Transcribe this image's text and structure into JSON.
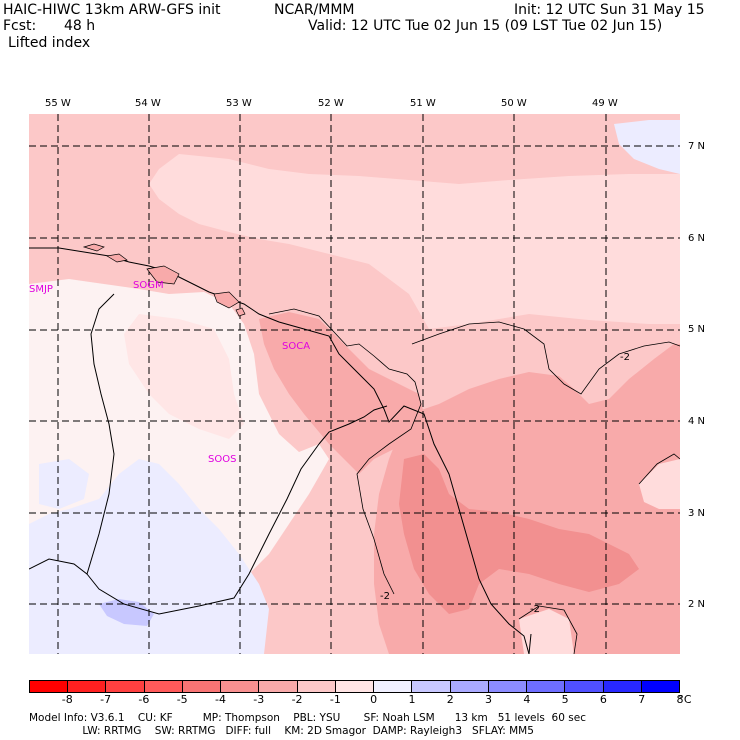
{
  "header": {
    "model_title": "HAIC-HIWC 13km ARW-GFS init",
    "org": "NCAR/MMM",
    "init": "Init: 12 UTC Sun 31 May 15",
    "fcst_label": "Fcst:",
    "fcst_value": "48 h",
    "valid": "Valid: 12 UTC Tue 02 Jun 15 (09 LST Tue 02 Jun 15)",
    "field": "Lifted index"
  },
  "map": {
    "lon_ticks": [
      "55 W",
      "54 W",
      "53 W",
      "52 W",
      "51 W",
      "50 W",
      "49 W"
    ],
    "lat_ticks": [
      "7 N",
      "6 N",
      "5 N",
      "4 N",
      "3 N",
      "2 N"
    ],
    "stations": [
      "SMJP",
      "SOGM",
      "SOCA",
      "SOOS"
    ],
    "contour_labels": [
      "-2",
      "-2",
      "-2"
    ],
    "colors": {
      "li_minus1": "#ffdcdc",
      "li_minus2": "#fcc8c8",
      "li_minus3": "#f8aaaa",
      "li_minus4": "#f29090",
      "li_0": "#fdf2f2",
      "li_plus1": "#ececff",
      "li_plus2": "#c8c8ff",
      "station": "#e000e0"
    }
  },
  "legend": {
    "labels": [
      "-8",
      "-7",
      "-6",
      "-5",
      "-4",
      "-3",
      "-2",
      "-1",
      "0",
      "1",
      "2",
      "3",
      "4",
      "5",
      "6",
      "7",
      "8"
    ],
    "unit": "°C",
    "colors": [
      "#ff0000",
      "#ff2020",
      "#ff4040",
      "#ff5a5a",
      "#f87474",
      "#f89090",
      "#f8aaaa",
      "#fcc8c8",
      "#ffe4e4",
      "#f0f0ff",
      "#c8c8ff",
      "#aaaaff",
      "#8c8cff",
      "#6e6eff",
      "#5050ff",
      "#2828ff",
      "#0000ff"
    ]
  },
  "model_info": {
    "line1": "Model Info: V3.6.1    CU: KF         MP: Thompson    PBL: YSU       SF: Noah LSM      13 km   51 levels  60 sec",
    "line2": "                LW: RRTMG    SW: RRTMG   DIFF: full    KM: 2D Smagor  DAMP: Rayleigh3   SFLAY: MM5"
  }
}
